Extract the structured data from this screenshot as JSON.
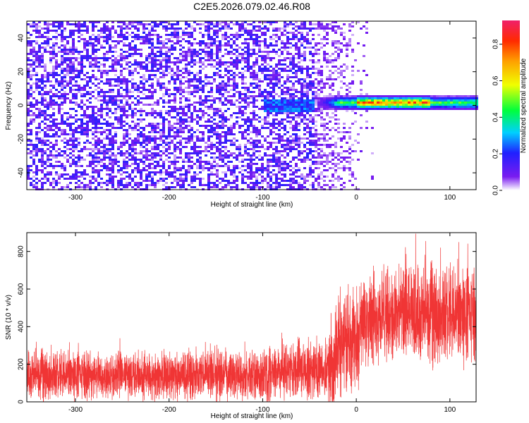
{
  "title": "C2E5.2026.079.02.46.R08",
  "chart_data": [
    {
      "type": "heatmap",
      "name": "spectrogram",
      "xlabel": "Height of straight line (km)",
      "ylabel": "Frequency (Hz)",
      "xlim": [
        -352,
        128
      ],
      "ylim": [
        -50,
        50
      ],
      "x_ticks": [
        -300,
        -200,
        -100,
        0,
        100
      ],
      "x_tick_labels": [
        "-300",
        "-200",
        "-100",
        "0",
        "100"
      ],
      "y_ticks": [
        -40,
        -20,
        0,
        20,
        40
      ],
      "y_tick_labels": [
        "-40",
        "-20",
        "0",
        "20",
        "40"
      ],
      "colorbar": {
        "label": "Normalized spectral amplitude",
        "range": [
          0,
          0.93
        ],
        "ticks": [
          0.0,
          0.2,
          0.4,
          0.6,
          0.8
        ],
        "tick_labels": [
          "0.0",
          "0.2",
          "0.4",
          "0.6",
          "0.8"
        ],
        "colormap": "rainbow (violet to red)"
      },
      "features": {
        "noise_region_x": [
          -352,
          -45
        ],
        "noise_amplitude": [
          0.05,
          0.2
        ],
        "weak_signal_start_x": -100,
        "signal_start_x": -45,
        "signal_frequency_hz": 1.5,
        "signal_amplitude_peak": 0.9,
        "signal_amplitude_peak_x": [
          0,
          80
        ]
      }
    },
    {
      "type": "line",
      "name": "snr",
      "xlabel": "Height of straight line (km)",
      "ylabel": "SNR (10 * v/v)",
      "xlim": [
        -352,
        128
      ],
      "ylim": [
        0,
        900
      ],
      "x_ticks": [
        -300,
        -200,
        -100,
        0,
        100
      ],
      "x_tick_labels": [
        "-300",
        "-200",
        "-100",
        "0",
        "100"
      ],
      "y_ticks": [
        0,
        200,
        400,
        600,
        800
      ],
      "y_tick_labels": [
        "0",
        "200",
        "400",
        "600",
        "800"
      ],
      "color": "#f03535",
      "segments": [
        {
          "x": [
            -352,
            -100
          ],
          "mean": 140,
          "spread": 100,
          "max": 340
        },
        {
          "x": [
            -100,
            -30
          ],
          "mean": 170,
          "spread": 120,
          "max": 380
        },
        {
          "x": [
            -30,
            0
          ],
          "mean": 330,
          "spread": 220,
          "max": 640
        },
        {
          "x": [
            0,
            128
          ],
          "mean": 460,
          "spread": 200,
          "max": 900
        }
      ]
    }
  ]
}
